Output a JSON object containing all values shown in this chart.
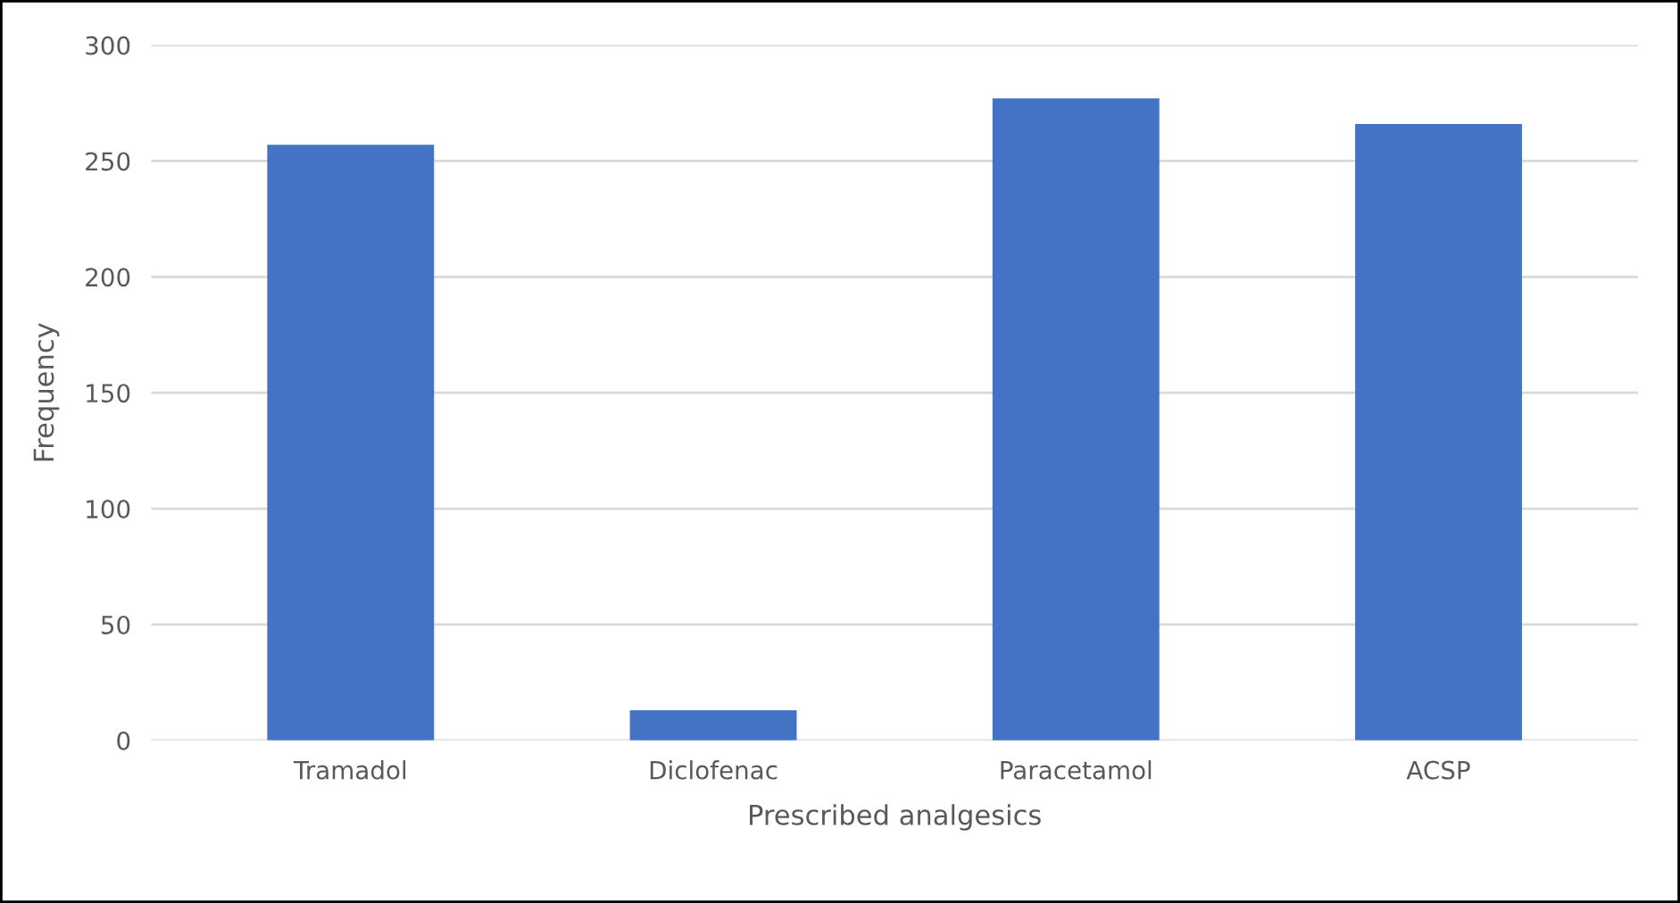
{
  "chart_data": {
    "type": "bar",
    "xlabel": "Prescribed analgesics",
    "ylabel": "Frequency",
    "categories": [
      "Tramadol",
      "Diclofenac",
      "Paracetamol",
      "ACSP"
    ],
    "values": [
      257,
      13,
      277,
      266
    ],
    "color": "#4472c4",
    "ylim": [
      0,
      300
    ],
    "yticks": [
      0,
      50,
      100,
      150,
      200,
      250,
      300
    ],
    "grid": "y"
  }
}
